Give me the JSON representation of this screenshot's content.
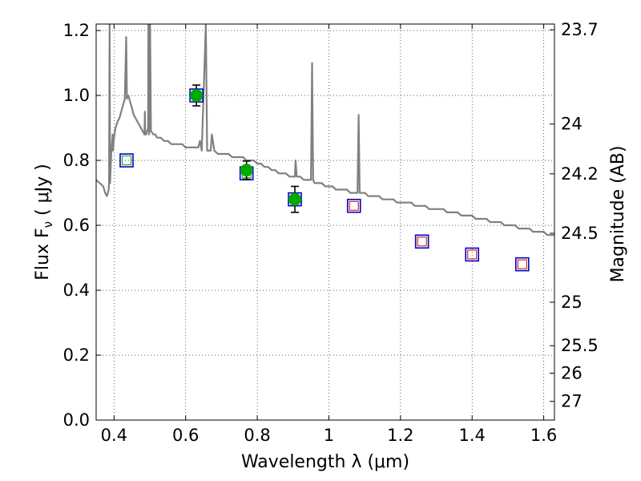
{
  "chart_data": {
    "type": "scatter",
    "xlabel": "Wavelength  λ (μm)",
    "ylabel": "Flux  F",
    "ylabel_sub": "ν",
    "ylabel_unit": " ( μJy )",
    "y2label": "Magnitude (AB)",
    "xlim": [
      0.35,
      1.63
    ],
    "ylim": [
      0.0,
      1.22
    ],
    "grid": true,
    "x_ticks": [
      {
        "value": 0.4,
        "label": "0.4"
      },
      {
        "value": 0.6,
        "label": "0.6"
      },
      {
        "value": 0.8,
        "label": "0.8"
      },
      {
        "value": 1.0,
        "label": "1"
      },
      {
        "value": 1.2,
        "label": "1.2"
      },
      {
        "value": 1.4,
        "label": "1.4"
      },
      {
        "value": 1.6,
        "label": "1.6"
      }
    ],
    "y_ticks": [
      {
        "value": 0.0,
        "label": "0.0"
      },
      {
        "value": 0.2,
        "label": "0.2"
      },
      {
        "value": 0.4,
        "label": "0.4"
      },
      {
        "value": 0.6,
        "label": "0.6"
      },
      {
        "value": 0.8,
        "label": "0.8"
      },
      {
        "value": 1.0,
        "label": "1.0"
      },
      {
        "value": 1.2,
        "label": "1.2"
      }
    ],
    "y2_ticks": [
      {
        "mag": 23.7,
        "label": "23.7"
      },
      {
        "mag": 24,
        "label": "24"
      },
      {
        "mag": 24.2,
        "label": "24.2"
      },
      {
        "mag": 24.5,
        "label": "24.5"
      },
      {
        "mag": 25,
        "label": "25"
      },
      {
        "mag": 25.5,
        "label": "25.5"
      },
      {
        "mag": 26,
        "label": "26"
      },
      {
        "mag": 27,
        "label": "27"
      }
    ],
    "model_spectrum": {
      "color": "#808080",
      "points": [
        [
          0.35,
          0.74
        ],
        [
          0.36,
          0.73
        ],
        [
          0.37,
          0.72
        ],
        [
          0.375,
          0.7
        ],
        [
          0.38,
          0.69
        ],
        [
          0.383,
          0.7
        ],
        [
          0.385,
          0.71
        ],
        [
          0.386,
          0.73
        ],
        [
          0.3875,
          1.22
        ],
        [
          0.389,
          0.73
        ],
        [
          0.392,
          0.82
        ],
        [
          0.394,
          0.85
        ],
        [
          0.396,
          0.88
        ],
        [
          0.397,
          0.83
        ],
        [
          0.4,
          0.87
        ],
        [
          0.404,
          0.9
        ],
        [
          0.41,
          0.92
        ],
        [
          0.415,
          0.93
        ],
        [
          0.42,
          0.95
        ],
        [
          0.425,
          0.97
        ],
        [
          0.43,
          0.99
        ],
        [
          0.434,
          1.18
        ],
        [
          0.436,
          0.99
        ],
        [
          0.44,
          1.0
        ],
        [
          0.445,
          0.98
        ],
        [
          0.45,
          0.96
        ],
        [
          0.455,
          0.94
        ],
        [
          0.46,
          0.93
        ],
        [
          0.465,
          0.92
        ],
        [
          0.47,
          0.91
        ],
        [
          0.475,
          0.9
        ],
        [
          0.48,
          0.89
        ],
        [
          0.485,
          0.88
        ],
        [
          0.4861,
          0.95
        ],
        [
          0.487,
          0.88
        ],
        [
          0.49,
          0.88
        ],
        [
          0.495,
          0.9
        ],
        [
          0.4959,
          1.22
        ],
        [
          0.498,
          0.88
        ],
        [
          0.5007,
          1.22
        ],
        [
          0.503,
          0.89
        ],
        [
          0.51,
          0.88
        ],
        [
          0.515,
          0.88
        ],
        [
          0.52,
          0.87
        ],
        [
          0.53,
          0.87
        ],
        [
          0.54,
          0.86
        ],
        [
          0.55,
          0.86
        ],
        [
          0.56,
          0.85
        ],
        [
          0.57,
          0.85
        ],
        [
          0.58,
          0.85
        ],
        [
          0.59,
          0.85
        ],
        [
          0.6,
          0.84
        ],
        [
          0.61,
          0.84
        ],
        [
          0.62,
          0.84
        ],
        [
          0.63,
          0.84
        ],
        [
          0.635,
          0.84
        ],
        [
          0.64,
          0.86
        ],
        [
          0.645,
          0.83
        ],
        [
          0.6563,
          1.22
        ],
        [
          0.66,
          0.83
        ],
        [
          0.67,
          0.83
        ],
        [
          0.6731,
          0.88
        ],
        [
          0.68,
          0.83
        ],
        [
          0.69,
          0.82
        ],
        [
          0.7,
          0.82
        ],
        [
          0.71,
          0.82
        ],
        [
          0.72,
          0.82
        ],
        [
          0.73,
          0.81
        ],
        [
          0.74,
          0.81
        ],
        [
          0.75,
          0.81
        ],
        [
          0.76,
          0.81
        ],
        [
          0.77,
          0.8
        ],
        [
          0.78,
          0.8
        ],
        [
          0.79,
          0.8
        ],
        [
          0.8,
          0.79
        ],
        [
          0.81,
          0.79
        ],
        [
          0.82,
          0.78
        ],
        [
          0.83,
          0.78
        ],
        [
          0.84,
          0.77
        ],
        [
          0.85,
          0.77
        ],
        [
          0.86,
          0.76
        ],
        [
          0.87,
          0.76
        ],
        [
          0.88,
          0.76
        ],
        [
          0.89,
          0.75
        ],
        [
          0.9,
          0.75
        ],
        [
          0.905,
          0.75
        ],
        [
          0.9069,
          0.8
        ],
        [
          0.91,
          0.75
        ],
        [
          0.92,
          0.75
        ],
        [
          0.93,
          0.74
        ],
        [
          0.94,
          0.74
        ],
        [
          0.95,
          0.74
        ],
        [
          0.9531,
          1.1
        ],
        [
          0.956,
          0.74
        ],
        [
          0.96,
          0.73
        ],
        [
          0.97,
          0.73
        ],
        [
          0.98,
          0.73
        ],
        [
          0.99,
          0.72
        ],
        [
          1.0,
          0.72
        ],
        [
          1.01,
          0.72
        ],
        [
          1.02,
          0.71
        ],
        [
          1.03,
          0.71
        ],
        [
          1.04,
          0.71
        ],
        [
          1.05,
          0.71
        ],
        [
          1.06,
          0.7
        ],
        [
          1.07,
          0.7
        ],
        [
          1.08,
          0.7
        ],
        [
          1.083,
          0.94
        ],
        [
          1.086,
          0.7
        ],
        [
          1.09,
          0.7
        ],
        [
          1.1,
          0.7
        ],
        [
          1.11,
          0.69
        ],
        [
          1.12,
          0.69
        ],
        [
          1.13,
          0.69
        ],
        [
          1.14,
          0.69
        ],
        [
          1.15,
          0.68
        ],
        [
          1.16,
          0.68
        ],
        [
          1.17,
          0.68
        ],
        [
          1.18,
          0.68
        ],
        [
          1.19,
          0.67
        ],
        [
          1.2,
          0.67
        ],
        [
          1.21,
          0.67
        ],
        [
          1.22,
          0.67
        ],
        [
          1.23,
          0.67
        ],
        [
          1.24,
          0.66
        ],
        [
          1.25,
          0.66
        ],
        [
          1.26,
          0.66
        ],
        [
          1.27,
          0.66
        ],
        [
          1.28,
          0.65
        ],
        [
          1.29,
          0.65
        ],
        [
          1.3,
          0.65
        ],
        [
          1.31,
          0.65
        ],
        [
          1.32,
          0.65
        ],
        [
          1.33,
          0.64
        ],
        [
          1.34,
          0.64
        ],
        [
          1.35,
          0.64
        ],
        [
          1.36,
          0.64
        ],
        [
          1.37,
          0.63
        ],
        [
          1.38,
          0.63
        ],
        [
          1.39,
          0.63
        ],
        [
          1.4,
          0.63
        ],
        [
          1.41,
          0.62
        ],
        [
          1.42,
          0.62
        ],
        [
          1.43,
          0.62
        ],
        [
          1.44,
          0.62
        ],
        [
          1.45,
          0.61
        ],
        [
          1.46,
          0.61
        ],
        [
          1.47,
          0.61
        ],
        [
          1.48,
          0.61
        ],
        [
          1.49,
          0.6
        ],
        [
          1.5,
          0.6
        ],
        [
          1.51,
          0.6
        ],
        [
          1.52,
          0.6
        ],
        [
          1.53,
          0.59
        ],
        [
          1.54,
          0.59
        ],
        [
          1.55,
          0.59
        ],
        [
          1.56,
          0.59
        ],
        [
          1.57,
          0.58
        ],
        [
          1.58,
          0.58
        ],
        [
          1.59,
          0.58
        ],
        [
          1.6,
          0.58
        ],
        [
          1.61,
          0.57
        ],
        [
          1.62,
          0.57
        ],
        [
          1.63,
          0.57
        ]
      ]
    },
    "model_photometry": {
      "color_outer": "#0000cc",
      "color_inner_red": "#cc0000",
      "color_inner_green": "#00aa00",
      "points": [
        {
          "x": 0.435,
          "y": 0.8,
          "inner": "green"
        },
        {
          "x": 0.63,
          "y": 1.0,
          "inner": "green"
        },
        {
          "x": 0.77,
          "y": 0.76,
          "inner": "green"
        },
        {
          "x": 0.905,
          "y": 0.68,
          "inner": "green"
        },
        {
          "x": 1.07,
          "y": 0.66,
          "inner": "red"
        },
        {
          "x": 1.26,
          "y": 0.55,
          "inner": "red"
        },
        {
          "x": 1.4,
          "y": 0.51,
          "inner": "red"
        },
        {
          "x": 1.54,
          "y": 0.48,
          "inner": "red"
        }
      ]
    },
    "observed": {
      "color": "#00aa00",
      "points": [
        {
          "x": 0.63,
          "y": 1.0,
          "err": 0.032
        },
        {
          "x": 0.77,
          "y": 0.77,
          "err": 0.028
        },
        {
          "x": 0.905,
          "y": 0.68,
          "err": 0.04
        }
      ]
    }
  }
}
